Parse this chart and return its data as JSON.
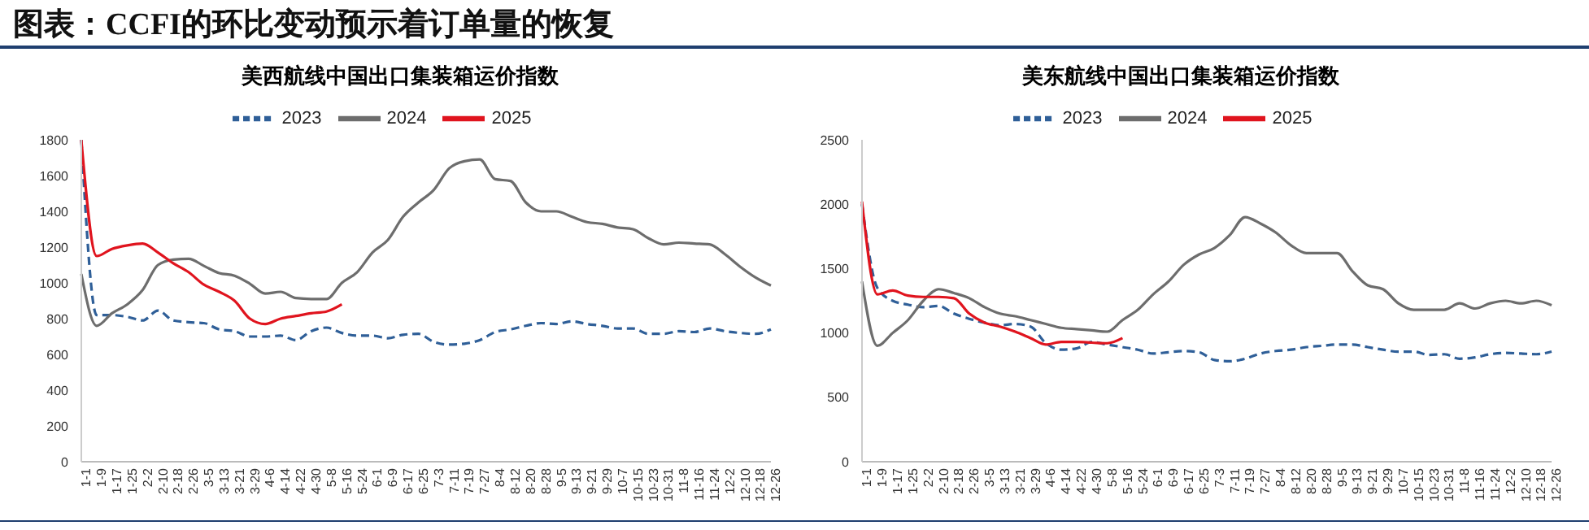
{
  "chart_data": [
    {
      "type": "other",
      "title": "图表：CCFI的环比变动预示着订单量的恢复"
    },
    {
      "type": "line",
      "title": "美西航线中国出口集装箱运价指数",
      "legend": "top",
      "marker": "none",
      "grid": false,
      "categories": [
        "1-1",
        "1-9",
        "1-17",
        "1-25",
        "2-2",
        "2-10",
        "2-18",
        "2-26",
        "3-5",
        "3-13",
        "3-21",
        "3-29",
        "4-6",
        "4-14",
        "4-22",
        "4-30",
        "5-8",
        "5-16",
        "5-24",
        "6-1",
        "6-9",
        "6-17",
        "6-25",
        "7-3",
        "7-11",
        "7-19",
        "7-27",
        "8-4",
        "8-12",
        "8-20",
        "8-28",
        "9-5",
        "9-13",
        "9-21",
        "9-29",
        "10-7",
        "10-15",
        "10-23",
        "10-31",
        "11-8",
        "11-16",
        "11-24",
        "12-2",
        "12-10",
        "12-18",
        "12-26"
      ],
      "ylim": [
        0,
        1800
      ],
      "yticks": [
        0,
        200,
        400,
        600,
        800,
        1000,
        1200,
        1400,
        1600,
        1800
      ],
      "series": [
        {
          "name": "2023",
          "color": "#2f5f98",
          "line_style": "dashed",
          "values": [
            1800,
            820,
            820,
            810,
            790,
            845,
            790,
            780,
            775,
            740,
            730,
            700,
            700,
            705,
            680,
            730,
            750,
            720,
            705,
            705,
            690,
            710,
            715,
            670,
            655,
            660,
            680,
            725,
            740,
            760,
            775,
            770,
            785,
            770,
            760,
            745,
            745,
            715,
            715,
            730,
            725,
            745,
            730,
            720,
            715,
            740
          ]
        },
        {
          "name": "2024",
          "color": "#6d6d6d",
          "line_style": "solid",
          "values": [
            1050,
            760,
            830,
            880,
            960,
            1100,
            1130,
            1135,
            1095,
            1055,
            1040,
            995,
            940,
            950,
            915,
            910,
            910,
            1000,
            1060,
            1170,
            1240,
            1370,
            1450,
            1520,
            1640,
            1680,
            1690,
            1580,
            1570,
            1450,
            1400,
            1400,
            1370,
            1340,
            1330,
            1310,
            1300,
            1250,
            1215,
            1225,
            1220,
            1215,
            1160,
            1090,
            1030,
            985
          ]
        },
        {
          "name": "2025",
          "color": "#e0141e",
          "line_style": "solid",
          "values": [
            1800,
            1150,
            1190,
            1210,
            1220,
            1170,
            1110,
            1060,
            990,
            950,
            900,
            800,
            770,
            800,
            815,
            830,
            840,
            880,
            null,
            null,
            null,
            null,
            null,
            null,
            null,
            null,
            null,
            null,
            null,
            null,
            null,
            null,
            null,
            null,
            null,
            null,
            null,
            null,
            null,
            null,
            null,
            null,
            null,
            null,
            null,
            null
          ]
        }
      ]
    },
    {
      "type": "line",
      "title": "美东航线中国出口集装箱运价指数",
      "legend": "top",
      "marker": "none",
      "grid": false,
      "categories": [
        "1-1",
        "1-9",
        "1-17",
        "1-25",
        "2-2",
        "2-10",
        "2-18",
        "2-26",
        "3-5",
        "3-13",
        "3-21",
        "3-29",
        "4-6",
        "4-14",
        "4-22",
        "4-30",
        "5-8",
        "5-16",
        "5-24",
        "6-1",
        "6-9",
        "6-17",
        "6-25",
        "7-3",
        "7-11",
        "7-19",
        "7-27",
        "8-4",
        "8-12",
        "8-20",
        "8-28",
        "9-5",
        "9-13",
        "9-21",
        "9-29",
        "10-7",
        "10-15",
        "10-23",
        "10-31",
        "11-8",
        "11-16",
        "11-24",
        "12-2",
        "12-10",
        "12-18",
        "12-26"
      ],
      "ylim": [
        0,
        2500
      ],
      "yticks": [
        0,
        500,
        1000,
        1500,
        2000,
        2500
      ],
      "series": [
        {
          "name": "2023",
          "color": "#2f5f98",
          "line_style": "dashed",
          "values": [
            2000,
            1350,
            1250,
            1220,
            1200,
            1210,
            1150,
            1110,
            1080,
            1060,
            1070,
            1050,
            920,
            870,
            880,
            930,
            910,
            890,
            870,
            840,
            850,
            860,
            850,
            790,
            780,
            800,
            840,
            860,
            870,
            890,
            900,
            910,
            910,
            890,
            870,
            855,
            855,
            830,
            835,
            800,
            810,
            835,
            845,
            840,
            835,
            855
          ]
        },
        {
          "name": "2024",
          "color": "#6d6d6d",
          "line_style": "solid",
          "values": [
            1400,
            900,
            1000,
            1100,
            1250,
            1340,
            1310,
            1270,
            1200,
            1150,
            1130,
            1100,
            1070,
            1040,
            1030,
            1020,
            1010,
            1100,
            1180,
            1300,
            1400,
            1530,
            1610,
            1660,
            1760,
            1900,
            1850,
            1780,
            1680,
            1620,
            1620,
            1620,
            1480,
            1370,
            1340,
            1230,
            1180,
            1180,
            1180,
            1230,
            1190,
            1230,
            1250,
            1230,
            1250,
            1215
          ]
        },
        {
          "name": "2025",
          "color": "#e0141e",
          "line_style": "solid",
          "values": [
            2020,
            1300,
            1330,
            1290,
            1280,
            1280,
            1270,
            1150,
            1080,
            1050,
            1010,
            960,
            910,
            930,
            930,
            925,
            920,
            960,
            null,
            null,
            null,
            null,
            null,
            null,
            null,
            null,
            null,
            null,
            null,
            null,
            null,
            null,
            null,
            null,
            null,
            null,
            null,
            null,
            null,
            null,
            null,
            null,
            null,
            null,
            null,
            null
          ]
        }
      ]
    }
  ]
}
